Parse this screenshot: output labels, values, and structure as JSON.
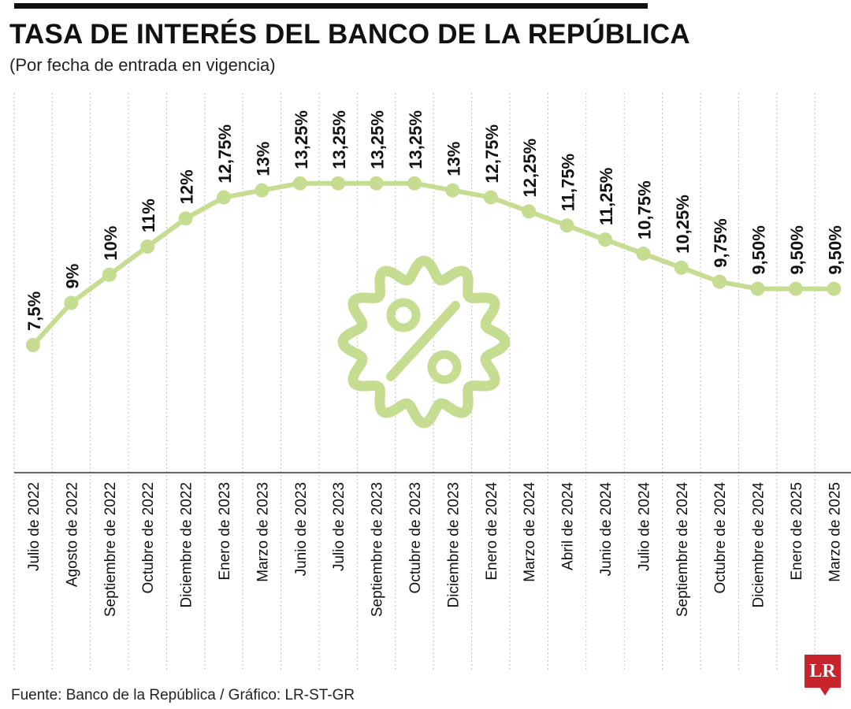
{
  "header": {
    "title": "TASA DE INTERÉS DEL BANCO DE LA REPÚBLICA",
    "subtitle": "(Por fecha de entrada en vigencia)"
  },
  "footer": {
    "source": "Fuente: Banco de la República / Gráfico: LR-ST-GR",
    "logo_text": "LR"
  },
  "colors": {
    "line": "#c5dc91",
    "grid": "#bfbfbf",
    "axis": "#333333",
    "logo": "#c8242b",
    "icon": "#c5dc91"
  },
  "icon": "percent-badge-icon",
  "chart_data": {
    "type": "line",
    "title": "TASA DE INTERÉS DEL BANCO DE LA REPÚBLICA",
    "xlabel": "",
    "ylabel": "",
    "grid": true,
    "categories": [
      "Julio de 2022",
      "Agosto de 2022",
      "Septiembre de 2022",
      "Octubre de 2022",
      "Diciembre de 2022",
      "Enero de 2023",
      "Marzo de 2023",
      "Junio de 2023",
      "Julio de 2023",
      "Septiembre de 2023",
      "Octubre de 2023",
      "Diciembre de 2023",
      "Enero de 2024",
      "Marzo de 2024",
      "Abril de 2024",
      "Junio de 2024",
      "Julio de 2024",
      "Septiembre de 2024",
      "Octubre de 2024",
      "Diciembre de 2024",
      "Enero de 2025",
      "Marzo de 2025"
    ],
    "values": [
      7.5,
      9,
      10,
      11,
      12,
      12.75,
      13,
      13.25,
      13.25,
      13.25,
      13.25,
      13,
      12.75,
      12.25,
      11.75,
      11.25,
      10.75,
      10.25,
      9.75,
      9.5,
      9.5,
      9.5
    ],
    "labels": [
      "7,5%",
      "9%",
      "10%",
      "11%",
      "12%",
      "12,75%",
      "13%",
      "13,25%",
      "13,25%",
      "13,25%",
      "13,25%",
      "13%",
      "12,75%",
      "12,25%",
      "11,75%",
      "11,25%",
      "10,75%",
      "10,25%",
      "9,75%",
      "9,50%",
      "9,50%",
      "9,50%"
    ]
  }
}
